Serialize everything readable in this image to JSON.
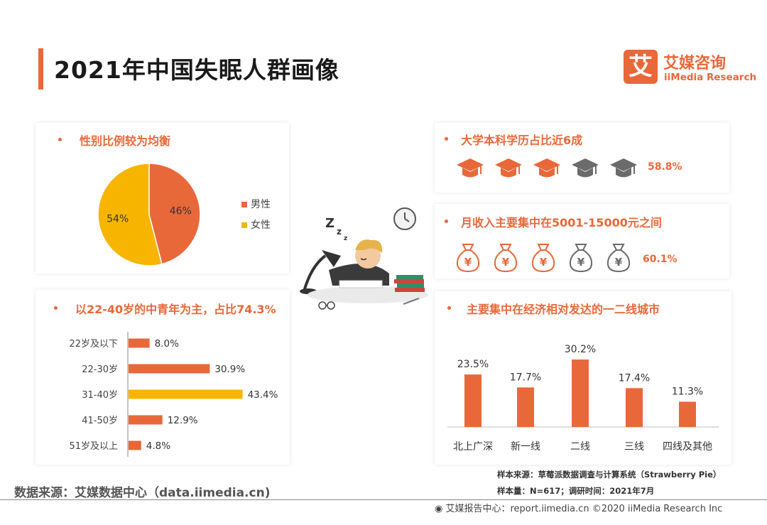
{
  "page": {
    "title": "2021年中国失眠人群画像",
    "logo_mark": "艾",
    "logo_cn": "艾媒咨询",
    "logo_en": "iiMedia Research"
  },
  "colors": {
    "orange": "#e8683a",
    "yellow": "#f7b500",
    "gray": "#6b6b6b"
  },
  "gender": {
    "title": "性别比例较为均衡",
    "legend": [
      {
        "label": "男性",
        "color": "#e8683a"
      },
      {
        "label": "女性",
        "color": "#f7b500"
      }
    ]
  },
  "education": {
    "title": "大学本科学历占比近6成",
    "icon": "graduation-cap-icon",
    "icons_total": 5,
    "icons_filled": 3,
    "percent": "58.8%"
  },
  "income": {
    "title": "月收入主要集中在5001-15000元之间",
    "icon": "money-bag-icon",
    "glyph": "¥",
    "icons_total": 5,
    "icons_filled": 3,
    "percent": "60.1%"
  },
  "age": {
    "title": "以22-40岁的中青年为主，占比74.3%"
  },
  "city": {
    "title": "主要集中在经济相对发达的一二线城市"
  },
  "chart_data": [
    {
      "type": "pie",
      "categories": [
        "男性",
        "女性"
      ],
      "values": [
        46,
        54
      ],
      "labels": [
        "46%",
        "54%"
      ],
      "colors": [
        "#e8683a",
        "#f7b500"
      ],
      "legend": "right"
    },
    {
      "type": "bar",
      "orientation": "horizontal",
      "categories": [
        "22岁及以下",
        "22-30岁",
        "31-40岁",
        "41-50岁",
        "51岁及以上"
      ],
      "values": [
        8.0,
        30.9,
        43.4,
        12.9,
        4.8
      ],
      "labels": [
        "8.0%",
        "30.9%",
        "43.4%",
        "12.9%",
        "4.8%"
      ],
      "highlight_index": 2,
      "colors": [
        "#e8683a",
        "#e8683a",
        "#f7b500",
        "#e8683a",
        "#e8683a"
      ]
    },
    {
      "type": "bar",
      "categories": [
        "北上广深",
        "新一线",
        "二线",
        "三线",
        "四线及其他"
      ],
      "values": [
        23.5,
        17.7,
        30.2,
        17.4,
        11.3
      ],
      "labels": [
        "23.5%",
        "17.7%",
        "30.2%",
        "17.4%",
        "11.3%"
      ],
      "color": "#e8683a"
    }
  ],
  "footer": {
    "source_left": "数据来源：艾媒数据中心（data.iimedia.cn)",
    "sample_source": "样本来源：草莓派数据调查与计算系统（Strawberry Pie）",
    "sample_size": "样本量：N=617；调研时间：2021年7月",
    "report": "艾媒报告中心：report.iimedia.cn  ©2020  iiMedia Research  Inc"
  }
}
